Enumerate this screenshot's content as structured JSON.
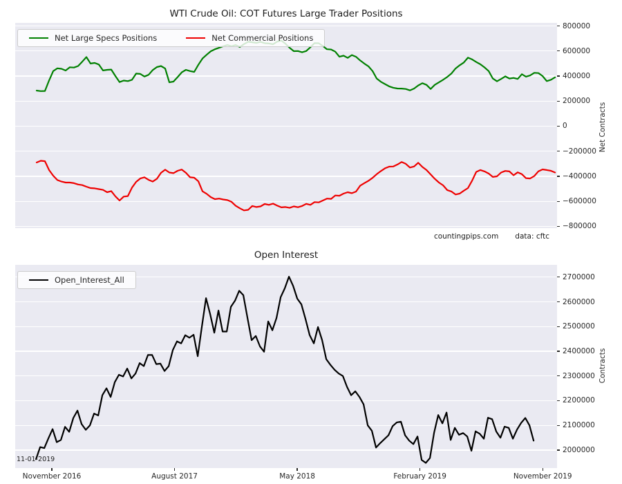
{
  "chart_data": [
    {
      "type": "line",
      "title": "WTI Crude Oil: COT Futures Large Trader Positions",
      "ylabel": "Net Contracts",
      "xlabel": "",
      "xlim": [
        2016.609,
        2019.921
      ],
      "ylim": [
        -814000,
        825000
      ],
      "yticks": [
        800000,
        600000,
        400000,
        200000,
        0,
        -200000,
        -400000,
        -600000,
        -800000
      ],
      "ytick_labels": [
        "800000",
        "600000",
        "400000",
        "200000",
        "0",
        "−200000",
        "−400000",
        "−600000",
        "−800000"
      ],
      "xticks": [],
      "grid": "horizontal-white-on-gray",
      "legend_position": "upper left",
      "annotations": [
        {
          "text": "countingpips.com"
        },
        {
          "text": "data: cftc"
        }
      ],
      "series": [
        {
          "name": "Net Large Specs Positions",
          "color": "#008000",
          "x_unit": "decimal_year",
          "x_start": 2016.74,
          "x_step": 0.02535,
          "values": [
            284000,
            280000,
            281000,
            365000,
            440000,
            462000,
            458000,
            444000,
            470000,
            468000,
            480000,
            515000,
            552000,
            500000,
            505000,
            492000,
            445000,
            450000,
            452000,
            400000,
            352000,
            364000,
            360000,
            370000,
            420000,
            417000,
            396000,
            410000,
            448000,
            472000,
            480000,
            460000,
            350000,
            356000,
            392000,
            430000,
            450000,
            440000,
            433000,
            490000,
            540000,
            570000,
            598000,
            614000,
            626000,
            638000,
            648000,
            638000,
            648000,
            632000,
            655000,
            674000,
            670000,
            665000,
            673000,
            662000,
            660000,
            654000,
            675000,
            684000,
            658000,
            626000,
            599000,
            600000,
            590000,
            600000,
            630000,
            663000,
            662000,
            640000,
            614000,
            612000,
            595000,
            554000,
            563000,
            545000,
            568000,
            554000,
            525000,
            500000,
            478000,
            440000,
            380000,
            354000,
            336000,
            318000,
            307000,
            301000,
            300000,
            297000,
            286000,
            300000,
            325000,
            343000,
            330000,
            297000,
            330000,
            350000,
            370000,
            393000,
            420000,
            460000,
            486000,
            508000,
            547000,
            533000,
            512000,
            494000,
            469000,
            440000,
            380000,
            358000,
            377000,
            398000,
            380000,
            385000,
            377000,
            415000,
            395000,
            405000,
            426000,
            424000,
            400000,
            360000,
            370000,
            390000
          ]
        },
        {
          "name": "Net Commercial Positions",
          "color": "#ee0000",
          "x_unit": "decimal_year",
          "x_start": 2016.74,
          "x_step": 0.02535,
          "values": [
            -290000,
            -276000,
            -279000,
            -350000,
            -395000,
            -430000,
            -442000,
            -450000,
            -450000,
            -455000,
            -465000,
            -470000,
            -483000,
            -494000,
            -496000,
            -502000,
            -508000,
            -527000,
            -518000,
            -560000,
            -593000,
            -562000,
            -558000,
            -490000,
            -444000,
            -417000,
            -408000,
            -428000,
            -442000,
            -420000,
            -372000,
            -347000,
            -370000,
            -375000,
            -356000,
            -346000,
            -372000,
            -408000,
            -411000,
            -440000,
            -520000,
            -540000,
            -566000,
            -582000,
            -578000,
            -585000,
            -590000,
            -604000,
            -635000,
            -655000,
            -672000,
            -668000,
            -637000,
            -645000,
            -640000,
            -621000,
            -628000,
            -618000,
            -634000,
            -648000,
            -645000,
            -652000,
            -640000,
            -647000,
            -637000,
            -620000,
            -628000,
            -606000,
            -608000,
            -593000,
            -578000,
            -580000,
            -553000,
            -555000,
            -538000,
            -527000,
            -535000,
            -522000,
            -475000,
            -455000,
            -436000,
            -412000,
            -383000,
            -358000,
            -336000,
            -323000,
            -322000,
            -306000,
            -286000,
            -300000,
            -330000,
            -322000,
            -292000,
            -325000,
            -350000,
            -385000,
            -420000,
            -450000,
            -472000,
            -510000,
            -521000,
            -545000,
            -538000,
            -515000,
            -494000,
            -435000,
            -365000,
            -350000,
            -361000,
            -378000,
            -405000,
            -400000,
            -370000,
            -357000,
            -361000,
            -392000,
            -368000,
            -383000,
            -415000,
            -417000,
            -398000,
            -360000,
            -345000,
            -350000,
            -356000,
            -370000
          ]
        }
      ]
    },
    {
      "type": "line",
      "title": "Open Interest",
      "ylabel": "Contracts",
      "xlabel": "",
      "xlim": [
        2016.609,
        2019.921
      ],
      "ylim": [
        1927000,
        2750000
      ],
      "yticks": [
        2700000,
        2600000,
        2500000,
        2400000,
        2300000,
        2200000,
        2100000,
        2000000
      ],
      "ytick_labels": [
        "2700000",
        "2600000",
        "2500000",
        "2400000",
        "2300000",
        "2200000",
        "2100000",
        "2000000"
      ],
      "xticks": [
        {
          "v": 2016.833,
          "label": "November 2016"
        },
        {
          "v": 2017.583,
          "label": "August 2017"
        },
        {
          "v": 2018.333,
          "label": "May 2018"
        },
        {
          "v": 2019.083,
          "label": "February 2019"
        },
        {
          "v": 2019.833,
          "label": "November 2019"
        }
      ],
      "grid": "horizontal-white-on-gray",
      "legend_position": "upper left",
      "annotation": {
        "text": "11-01-2019"
      },
      "series": [
        {
          "name": "Open_Interest_All",
          "color": "#000000",
          "x_unit": "decimal_year",
          "x_start": 2016.736,
          "x_step": 0.02535,
          "values": [
            1963000,
            2012000,
            2008000,
            2048000,
            2085000,
            2032000,
            2041000,
            2094000,
            2074000,
            2130000,
            2160000,
            2105000,
            2082000,
            2100000,
            2148000,
            2140000,
            2222000,
            2250000,
            2215000,
            2275000,
            2305000,
            2298000,
            2330000,
            2290000,
            2310000,
            2352000,
            2340000,
            2385000,
            2385000,
            2348000,
            2350000,
            2320000,
            2340000,
            2405000,
            2440000,
            2432000,
            2465000,
            2455000,
            2467000,
            2380000,
            2500000,
            2615000,
            2550000,
            2475000,
            2565000,
            2480000,
            2480000,
            2580000,
            2605000,
            2645000,
            2627000,
            2535000,
            2445000,
            2462000,
            2420000,
            2398000,
            2521000,
            2485000,
            2535000,
            2619000,
            2655000,
            2702000,
            2665000,
            2613000,
            2590000,
            2530000,
            2465000,
            2432000,
            2498000,
            2445000,
            2368000,
            2345000,
            2325000,
            2310000,
            2300000,
            2256000,
            2222000,
            2238000,
            2215000,
            2185000,
            2100000,
            2078000,
            2010000,
            2028000,
            2044000,
            2060000,
            2097000,
            2112000,
            2115000,
            2060000,
            2038000,
            2024000,
            2055000,
            1960000,
            1948000,
            1968000,
            2070000,
            2142000,
            2108000,
            2152000,
            2041000,
            2090000,
            2062000,
            2069000,
            2055000,
            1997000,
            2076000,
            2066000,
            2046000,
            2131000,
            2125000,
            2075000,
            2050000,
            2095000,
            2090000,
            2046000,
            2083000,
            2110000,
            2130000,
            2100000,
            2038000
          ]
        }
      ]
    }
  ]
}
